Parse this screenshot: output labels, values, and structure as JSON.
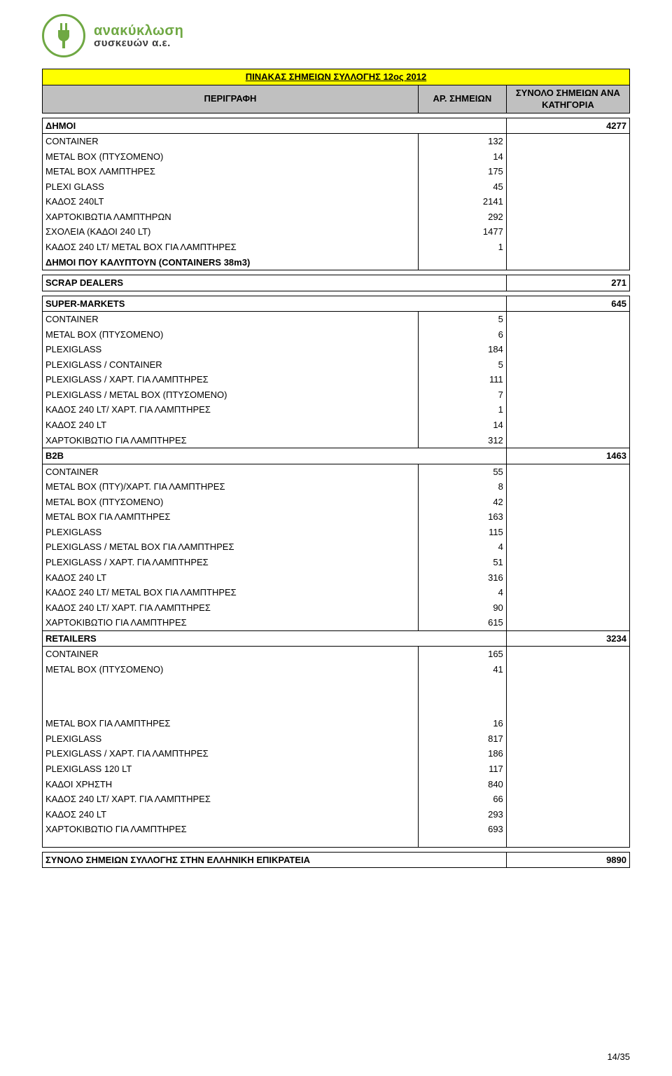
{
  "logo": {
    "top": "ανακύκλωση",
    "bottom": "συσκευών α.ε."
  },
  "title": "ΠΙΝΑΚΑΣ ΣΗΜΕΙΩΝ ΣΥΛΛΟΓΗΣ 12ος 2012",
  "header": {
    "desc": "ΠΕΡΙΓΡΑΦΗ",
    "num": "ΑΡ. ΣΗΜΕΙΩΝ",
    "total": "ΣΥΝΟΛΟ ΣΗΜΕΙΩΝ ΑΝΑ ΚΑΤΗΓΟΡΙΑ"
  },
  "sections": [
    {
      "name": "ΔΗΜΟΙ",
      "total": "4277",
      "items": [
        {
          "label": "CONTAINER",
          "value": "132"
        },
        {
          "label": "METAL BOX (ΠΤΥΣΟΜΕΝΟ)",
          "value": "14"
        },
        {
          "label": "METAL BOX ΛΑΜΠΤΗΡΕΣ",
          "value": "175"
        },
        {
          "label": "PLEXI GLASS",
          "value": "45"
        },
        {
          "label": "ΚΑΔΟΣ 240LT",
          "value": "2141"
        },
        {
          "label": "ΧΑΡΤΟΚΙΒΩΤΙΑ ΛΑΜΠΤΗΡΩΝ",
          "value": "292"
        },
        {
          "label": "ΣΧΟΛΕΙΑ (ΚΑΔΟΙ 240 LT)",
          "value": "1477"
        },
        {
          "label": "ΚΑΔΟΣ 240 LT/ METAL BOX ΓΙΑ ΛΑΜΠΤΗΡΕΣ",
          "value": "1"
        }
      ],
      "trailing": "ΔΗΜΟΙ ΠΟΥ ΚΑΛΥΠΤΟΥΝ (CONTAINERS 38m3)"
    },
    {
      "name": "SCRAP DEALERS",
      "total": "271",
      "items": []
    },
    {
      "name": "SUPER-MARKETS",
      "total": "645",
      "items": [
        {
          "label": "CONTAINER",
          "value": "5"
        },
        {
          "label": "METAL BOX (ΠΤΥΣΟΜΕΝΟ)",
          "value": "6"
        },
        {
          "label": "PLEXIGLASS",
          "value": "184"
        },
        {
          "label": "PLEXIGLASS / CONTAINER",
          "value": "5"
        },
        {
          "label": "PLEXIGLASS / ΧΑΡΤ. ΓΙΑ ΛΑΜΠΤΗΡΕΣ",
          "value": "111"
        },
        {
          "label": "PLEXIGLASS / METAL BOX (ΠΤΥΣΟΜΕΝΟ)",
          "value": "7"
        },
        {
          "label": "ΚΑΔΟΣ 240 LT/ ΧΑΡΤ. ΓΙΑ ΛΑΜΠΤΗΡΕΣ",
          "value": "1"
        },
        {
          "label": "ΚΑΔΟΣ 240 LT",
          "value": "14"
        },
        {
          "label": "ΧΑΡΤΟΚΙΒΩΤΙΟ ΓΙΑ ΛΑΜΠΤΗΡΕΣ",
          "value": "312"
        }
      ]
    },
    {
      "name": "B2B",
      "total": "1463",
      "items": [
        {
          "label": "CONTAINER",
          "value": "55"
        },
        {
          "label": "METAL BOX (ΠΤΥ)/ΧΑΡΤ. ΓΙΑ ΛΑΜΠΤΗΡΕΣ",
          "value": "8"
        },
        {
          "label": "METAL BOX (ΠΤΥΣΟΜΕΝΟ)",
          "value": "42"
        },
        {
          "label": "METAL BOX ΓΙΑ ΛΑΜΠΤΗΡΕΣ",
          "value": "163"
        },
        {
          "label": "PLEXIGLASS",
          "value": "115"
        },
        {
          "label": "PLEXIGLASS / METAL BOX ΓΙΑ ΛΑΜΠΤΗΡΕΣ",
          "value": "4"
        },
        {
          "label": "PLEXIGLASS / ΧΑΡΤ. ΓΙΑ ΛΑΜΠΤΗΡΕΣ",
          "value": "51"
        },
        {
          "label": "ΚΑΔΟΣ 240 LT",
          "value": "316"
        },
        {
          "label": "ΚΑΔΟΣ 240 LT/ METAL BOX ΓΙΑ ΛΑΜΠΤΗΡΕΣ",
          "value": "4"
        },
        {
          "label": "ΚΑΔΟΣ 240 LT/ ΧΑΡΤ. ΓΙΑ ΛΑΜΠΤΗΡΕΣ",
          "value": "90"
        },
        {
          "label": "ΧΑΡΤΟΚΙΒΩΤΙΟ ΓΙΑ ΛΑΜΠΤΗΡΕΣ",
          "value": "615"
        }
      ]
    },
    {
      "name": "RETAILERS",
      "total": "3234",
      "items": [
        {
          "label": "CONTAINER",
          "value": "165"
        },
        {
          "label": "METAL BOX (ΠΤΥΣΟΜΕΝΟ)",
          "value": "41"
        }
      ],
      "afterBlank": true,
      "extraItems": [
        {
          "label": "METAL BOX ΓΙΑ ΛΑΜΠΤΗΡΕΣ",
          "value": "16"
        },
        {
          "label": "PLEXIGLASS",
          "value": "817"
        },
        {
          "label": "PLEXIGLASS / ΧΑΡΤ. ΓΙΑ ΛΑΜΠΤΗΡΕΣ",
          "value": "186"
        },
        {
          "label": "PLEXIGLASS 120 LT",
          "value": "117"
        },
        {
          "label": "ΚΑΔΟΙ ΧΡΗΣΤΗ",
          "value": "840"
        },
        {
          "label": "ΚΑΔΟΣ 240 LT/ ΧΑΡΤ. ΓΙΑ ΛΑΜΠΤΗΡΕΣ",
          "value": "66"
        },
        {
          "label": "ΚΑΔΟΣ 240 LT",
          "value": "293"
        },
        {
          "label": "ΧΑΡΤΟΚΙΒΩΤΙΟ ΓΙΑ ΛΑΜΠΤΗΡΕΣ",
          "value": "693"
        }
      ]
    }
  ],
  "grand": {
    "label": "ΣΥΝΟΛΟ ΣΗΜΕΙΩΝ ΣΥΛΛΟΓΗΣ ΣΤΗΝ ΕΛΛΗΝΙΚΗ ΕΠΙΚΡΑΤΕΙΑ",
    "value": "9890"
  },
  "pageNum": "14/35",
  "colors": {
    "titleBg": "#ffff00",
    "headerBg": "#c0c0c0",
    "border": "#000000",
    "logoGreen": "#6fa843"
  }
}
